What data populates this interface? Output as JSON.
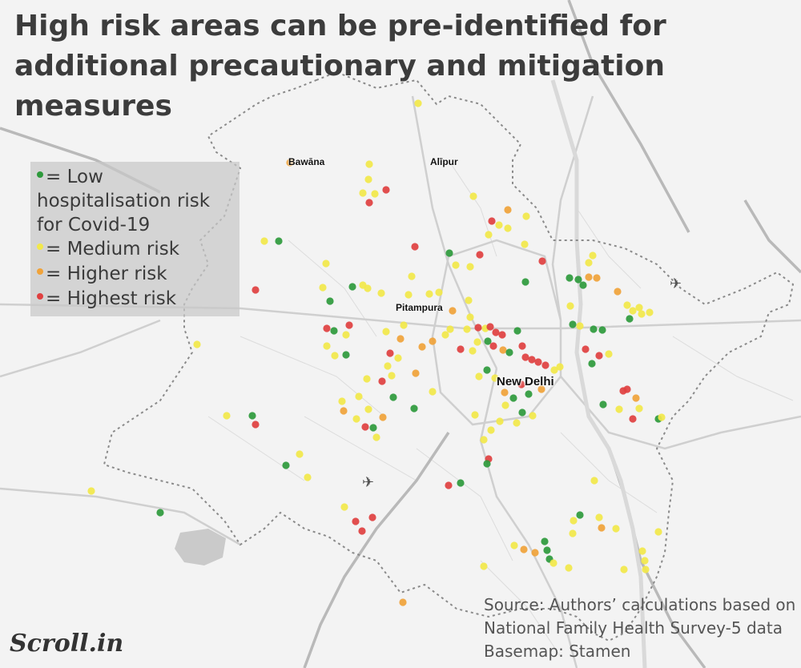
{
  "title": "High risk areas can be pre-identified for additional precautionary and mitigation measures",
  "legend": [
    {
      "label": "= Low hospitalisation risk for Covid-19",
      "color": "#2e9a3c",
      "lines": [
        "= Low",
        "hospitalisation risk",
        "for Covid-19"
      ]
    },
    {
      "label": "= Medium risk",
      "color": "#f2e84a"
    },
    {
      "label": "= Higher risk",
      "color": "#f0a33a"
    },
    {
      "label": "= Highest risk",
      "color": "#e04040"
    }
  ],
  "places": {
    "bawana": "Bawāna",
    "alipur": "Alīpur",
    "pitampura": "Pitampura",
    "new_delhi": "New Delhi"
  },
  "source": {
    "line1": "Source:  Authors’ calculations based on",
    "line2": "National Family Health Survey-5 data",
    "line3": "Basemap: Stamen"
  },
  "logo": "Scroll.in",
  "icons": {
    "airport": "airplane-icon"
  },
  "colors": {
    "low": "#2e9a3c",
    "medium": "#f2e84a",
    "higher": "#f0a33a",
    "highest": "#e04040"
  }
}
